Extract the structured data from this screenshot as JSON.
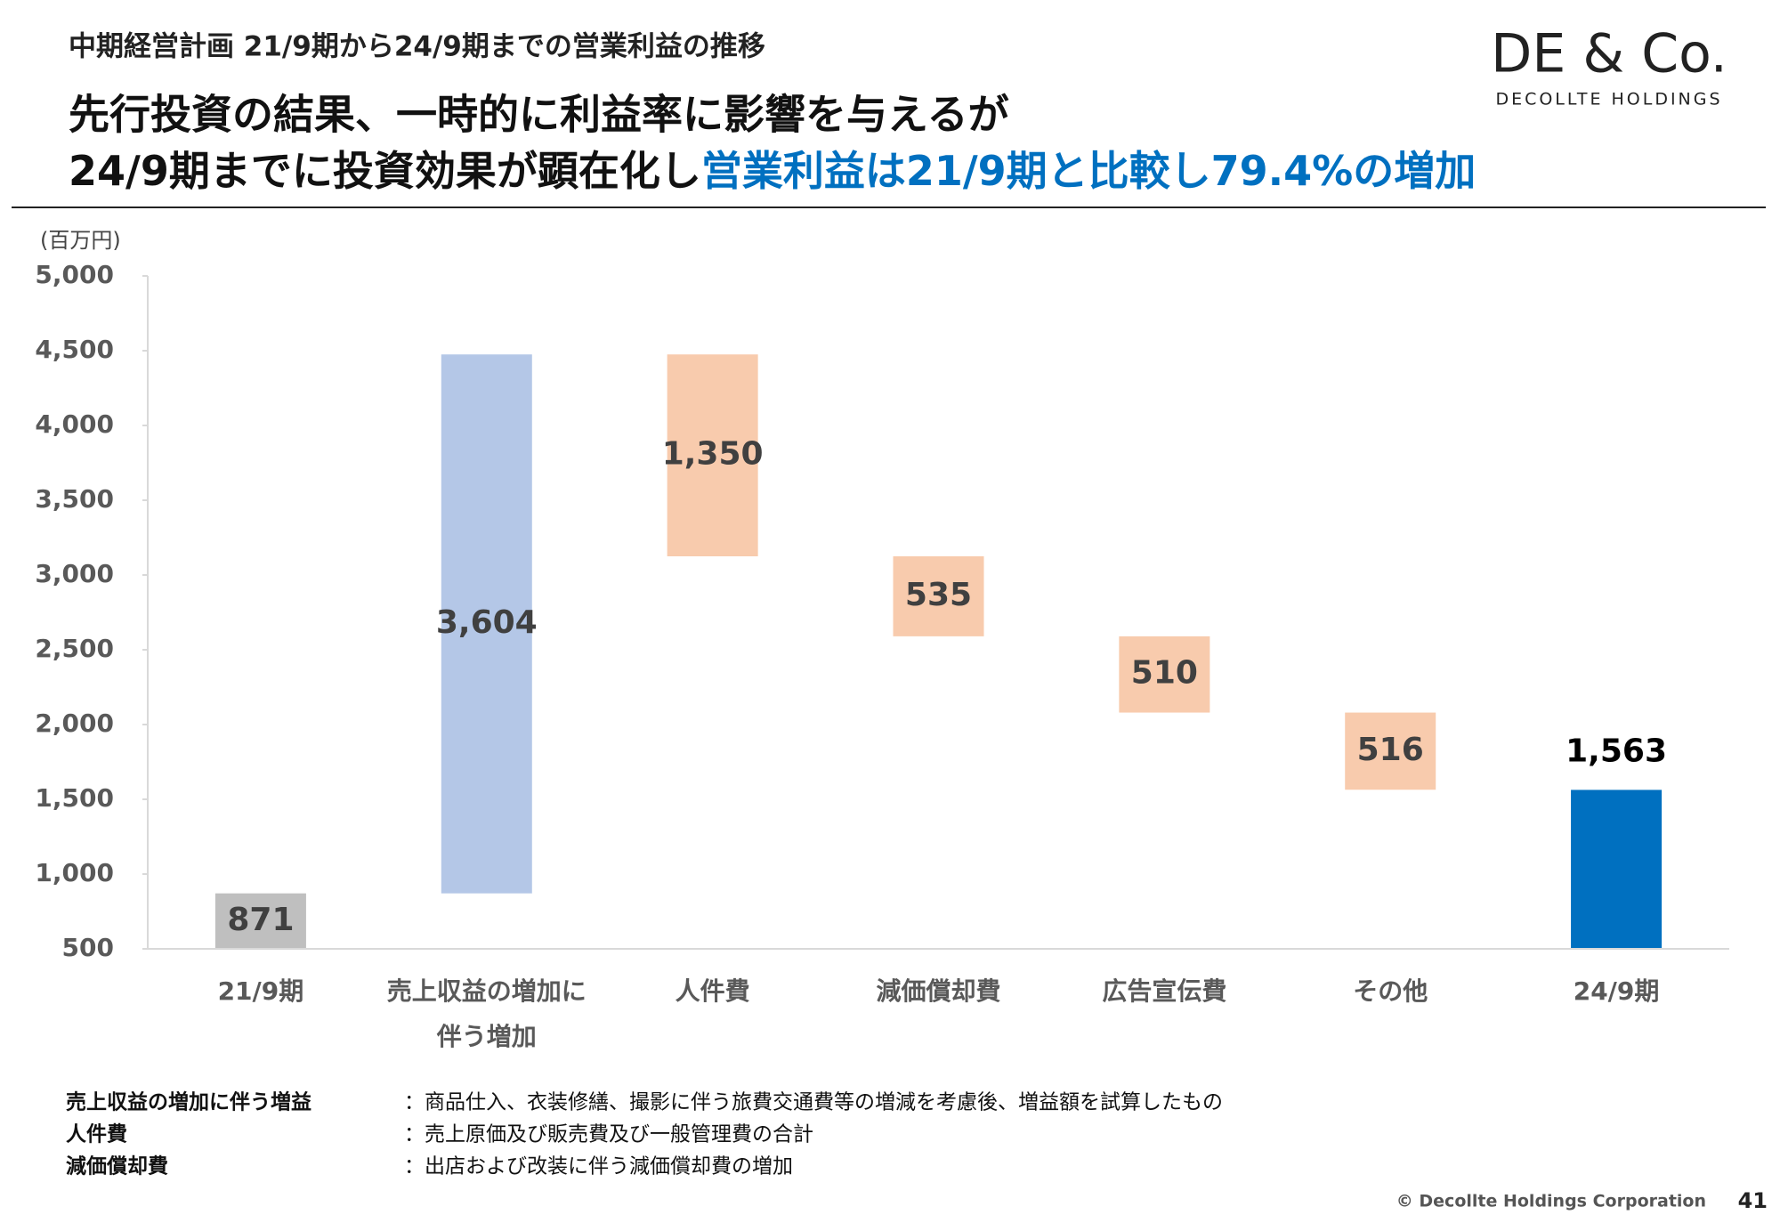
{
  "header": {
    "subtitle": "中期経営計画  21/9期から24/9期までの営業利益の推移",
    "headline_1": "先行投資の結果、一時的に利益率に影響を与えるが",
    "headline_2a": "24/9期までに投資効果が顕在化し",
    "headline_2b": "営業利益は21/9期と比較し79.4%の増加",
    "logo": "DE & Co.",
    "logo_sub": "DECOLLTE HOLDINGS"
  },
  "chart_data": {
    "type": "waterfall",
    "y_unit": "(百万円)",
    "categories": [
      "21/9期",
      "売上収益の増加に\n伴う増加",
      "人件費",
      "減価償却費",
      "広告宣伝費",
      "その他",
      "24/9期"
    ],
    "measures": [
      "absolute",
      "relative",
      "relative",
      "relative",
      "relative",
      "relative",
      "total"
    ],
    "values": [
      871,
      3604,
      -1350,
      -535,
      -510,
      -516,
      1563
    ],
    "value_labels": [
      "871",
      "3,604",
      "1,350",
      "535",
      "510",
      "516",
      "1,563"
    ],
    "colors": {
      "absolute": "#bfbfbf",
      "increase": "#b4c7e7",
      "decrease": "#f8cbad",
      "total": "#0070c0"
    },
    "ylim": [
      500,
      5000
    ],
    "yticks": [
      500,
      {
        "value": 1000,
        "label": "1,000"
      },
      {
        "value": 1500,
        "label": "1,500"
      },
      {
        "value": 2000,
        "label": "2,000"
      },
      {
        "value": 2500,
        "label": "2,500"
      },
      {
        "value": 3000,
        "label": "3,000"
      },
      {
        "value": 3500,
        "label": "3,500"
      },
      {
        "value": 4000,
        "label": "4,000"
      },
      {
        "value": 4500,
        "label": "4,500"
      },
      {
        "value": 5000,
        "label": "5,000"
      }
    ]
  },
  "notes": [
    [
      "売上収益の増加に伴う増益",
      "：商品仕入、衣装修繕、撮影に伴う旅費交通費等の増減を考慮後、増益額を試算したもの"
    ],
    [
      "人件費",
      "：売上原価及び販売費及び一般管理費の合計"
    ],
    [
      "減価償却費",
      "：出店および改装に伴う減価償却費の増加"
    ]
  ],
  "footer": {
    "copyright": "© Decollte Holdings Corporation",
    "page": "41"
  }
}
